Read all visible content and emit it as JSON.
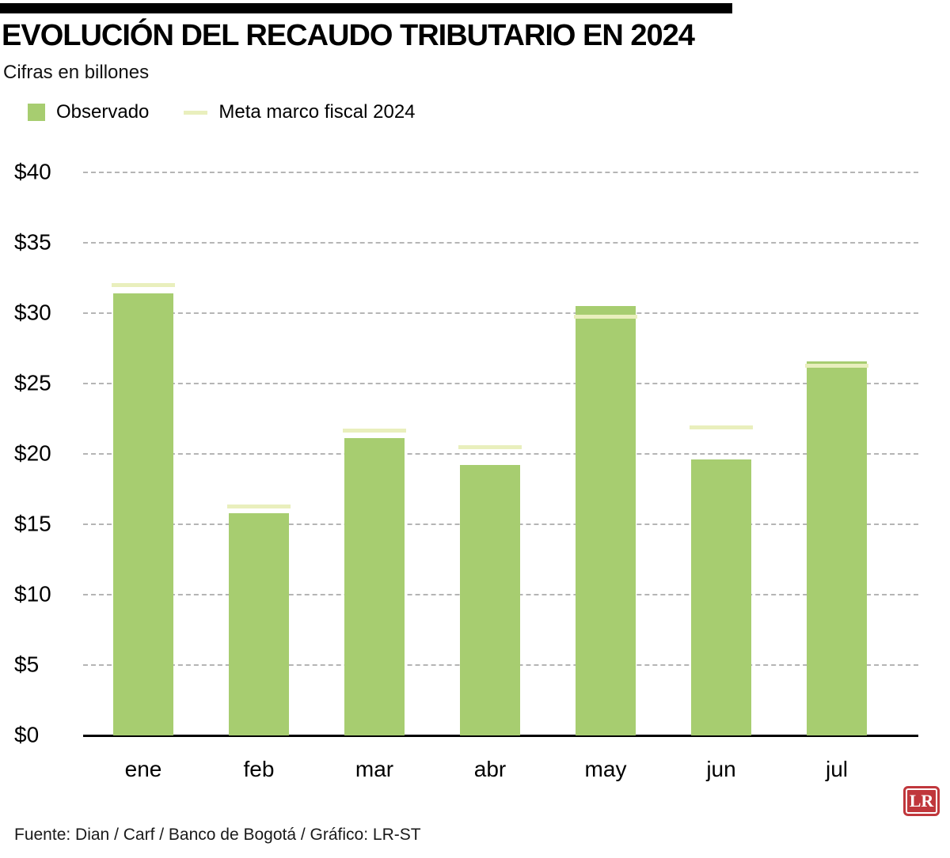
{
  "chart_data": {
    "type": "bar",
    "title": "EVOLUCIÓN DEL RECAUDO TRIBUTARIO EN 2024",
    "subtitle": "Cifras en billones",
    "categories": [
      "ene",
      "feb",
      "mar",
      "abr",
      "may",
      "jun",
      "jul"
    ],
    "series": [
      {
        "name": "Observado",
        "values": [
          31.4,
          15.8,
          21.1,
          19.2,
          30.5,
          19.6,
          26.6
        ]
      },
      {
        "name": "Meta marco fiscal 2024",
        "values": [
          32.0,
          16.3,
          21.7,
          20.5,
          29.8,
          21.9,
          26.3
        ]
      }
    ],
    "xlabel": "",
    "ylabel": "",
    "ylim": [
      0,
      40
    ],
    "ytick_step": 5,
    "yticks": [
      "$0",
      "$5",
      "$10",
      "$15",
      "$20",
      "$25",
      "$30",
      "$35",
      "$40"
    ],
    "grid": "horizontal-dashed",
    "legend_position": "top-left"
  },
  "legend": [
    {
      "label": "Observado",
      "swatch": "square"
    },
    {
      "label": "Meta marco fiscal 2024",
      "swatch": "line"
    }
  ],
  "footer": {
    "source": "Fuente: Dian / Carf / Banco de Bogotá / Gráfico: LR-ST",
    "logo_text": "LR"
  },
  "colors": {
    "bar": "#a7cd70",
    "meta": "#e9efbd",
    "grid": "#b5b5b5",
    "axis": "#000000",
    "logo_bg": "#c0373c"
  }
}
